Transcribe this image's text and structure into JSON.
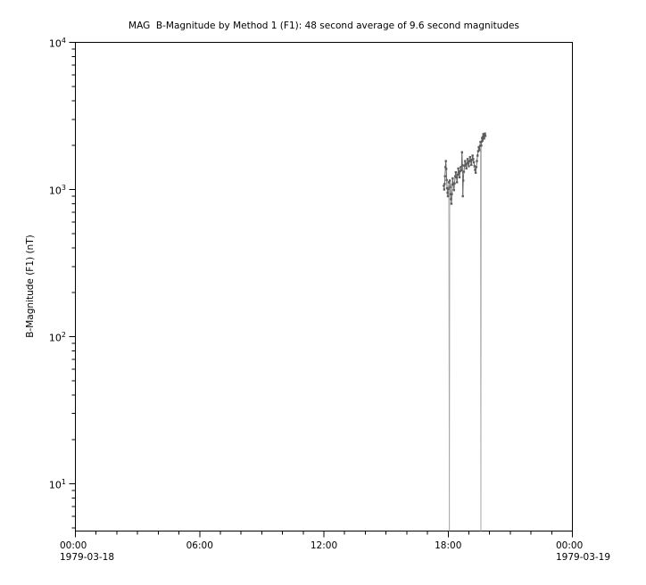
{
  "window": {
    "background": "#ffffff"
  },
  "chart_data": {
    "type": "line",
    "title": "MAG  B-Magnitude by Method 1 (F1): 48 second average of 9.6 second magnitudes",
    "ylabel": "B-Magnitude (F1) (nT)",
    "xlabel": "",
    "y_scale": "log",
    "ylim": [
      4.77,
      10000
    ],
    "xlim_hours": [
      0,
      24
    ],
    "grid": false,
    "legend": "none",
    "colors": {
      "axis": "#000000",
      "text": "#000000",
      "series": "#5d5d5d",
      "dropout_line": "#a9a9a9",
      "background": "#ffffff"
    },
    "x_axis": {
      "minor_tick_interval_hours": 1,
      "major_tick_interval_hours": 6,
      "ticks": [
        {
          "hour": 0,
          "label": "00:00",
          "sublabel": "1979-03-18"
        },
        {
          "hour": 6,
          "label": "06:00",
          "sublabel": ""
        },
        {
          "hour": 12,
          "label": "12:00",
          "sublabel": ""
        },
        {
          "hour": 18,
          "label": "18:00",
          "sublabel": ""
        },
        {
          "hour": 24,
          "label": "00:00",
          "sublabel": "1979-03-19"
        }
      ]
    },
    "y_axis": {
      "ticks": [
        {
          "base": "10",
          "exp": "4",
          "value": 10000
        },
        {
          "base": "10",
          "exp": "3",
          "value": 1000
        },
        {
          "base": "10",
          "exp": "2",
          "value": 100
        },
        {
          "base": "10",
          "exp": "1",
          "value": 10
        }
      ]
    },
    "dropouts_hours": [
      18.06,
      19.58
    ],
    "series": [
      {
        "name": "B-Magnitude (F1)",
        "marker": "square",
        "points": [
          [
            17.79,
            1060
          ],
          [
            17.81,
            1000
          ],
          [
            17.83,
            1090
          ],
          [
            17.85,
            1230
          ],
          [
            17.87,
            1420
          ],
          [
            17.89,
            1560
          ],
          [
            17.91,
            1380
          ],
          [
            17.93,
            1160
          ],
          [
            17.95,
            1020
          ],
          [
            17.97,
            950
          ],
          [
            17.99,
            900
          ],
          [
            18.01,
            1010
          ],
          [
            18.03,
            1120
          ],
          [
            18.06,
            0
          ],
          [
            18.08,
            1150
          ],
          [
            18.1,
            1040
          ],
          [
            18.12,
            930
          ],
          [
            18.14,
            860
          ],
          [
            18.16,
            800
          ],
          [
            18.18,
            930
          ],
          [
            18.2,
            1080
          ],
          [
            18.22,
            1190
          ],
          [
            18.25,
            1090
          ],
          [
            18.28,
            990
          ],
          [
            18.31,
            1100
          ],
          [
            18.34,
            1230
          ],
          [
            18.37,
            1310
          ],
          [
            18.4,
            1210
          ],
          [
            18.43,
            1120
          ],
          [
            18.46,
            1260
          ],
          [
            18.49,
            1390
          ],
          [
            18.52,
            1300
          ],
          [
            18.55,
            1210
          ],
          [
            18.58,
            1330
          ],
          [
            18.61,
            1420
          ],
          [
            18.64,
            1350
          ],
          [
            18.67,
            1790
          ],
          [
            18.69,
            1460
          ],
          [
            18.71,
            900
          ],
          [
            18.73,
            1150
          ],
          [
            18.76,
            1320
          ],
          [
            18.79,
            1450
          ],
          [
            18.82,
            1560
          ],
          [
            18.85,
            1470
          ],
          [
            18.88,
            1390
          ],
          [
            18.91,
            1500
          ],
          [
            18.94,
            1610
          ],
          [
            18.97,
            1520
          ],
          [
            19.0,
            1440
          ],
          [
            19.03,
            1560
          ],
          [
            19.06,
            1660
          ],
          [
            19.09,
            1560
          ],
          [
            19.12,
            1470
          ],
          [
            19.15,
            1590
          ],
          [
            19.18,
            1700
          ],
          [
            19.21,
            1610
          ],
          [
            19.24,
            1530
          ],
          [
            19.27,
            1440
          ],
          [
            19.3,
            1360
          ],
          [
            19.33,
            1300
          ],
          [
            19.36,
            1420
          ],
          [
            19.39,
            1560
          ],
          [
            19.42,
            1700
          ],
          [
            19.45,
            1820
          ],
          [
            19.48,
            1940
          ],
          [
            19.51,
            1850
          ],
          [
            19.54,
            1980
          ],
          [
            19.56,
            2100
          ],
          [
            19.58,
            0
          ],
          [
            19.6,
            1990
          ],
          [
            19.62,
            2120
          ],
          [
            19.64,
            2240
          ],
          [
            19.66,
            2150
          ],
          [
            19.68,
            2280
          ],
          [
            19.7,
            2380
          ],
          [
            19.72,
            2300
          ],
          [
            19.74,
            2220
          ],
          [
            19.76,
            2330
          ],
          [
            19.78,
            2400
          ],
          [
            19.8,
            2310
          ]
        ]
      }
    ]
  }
}
